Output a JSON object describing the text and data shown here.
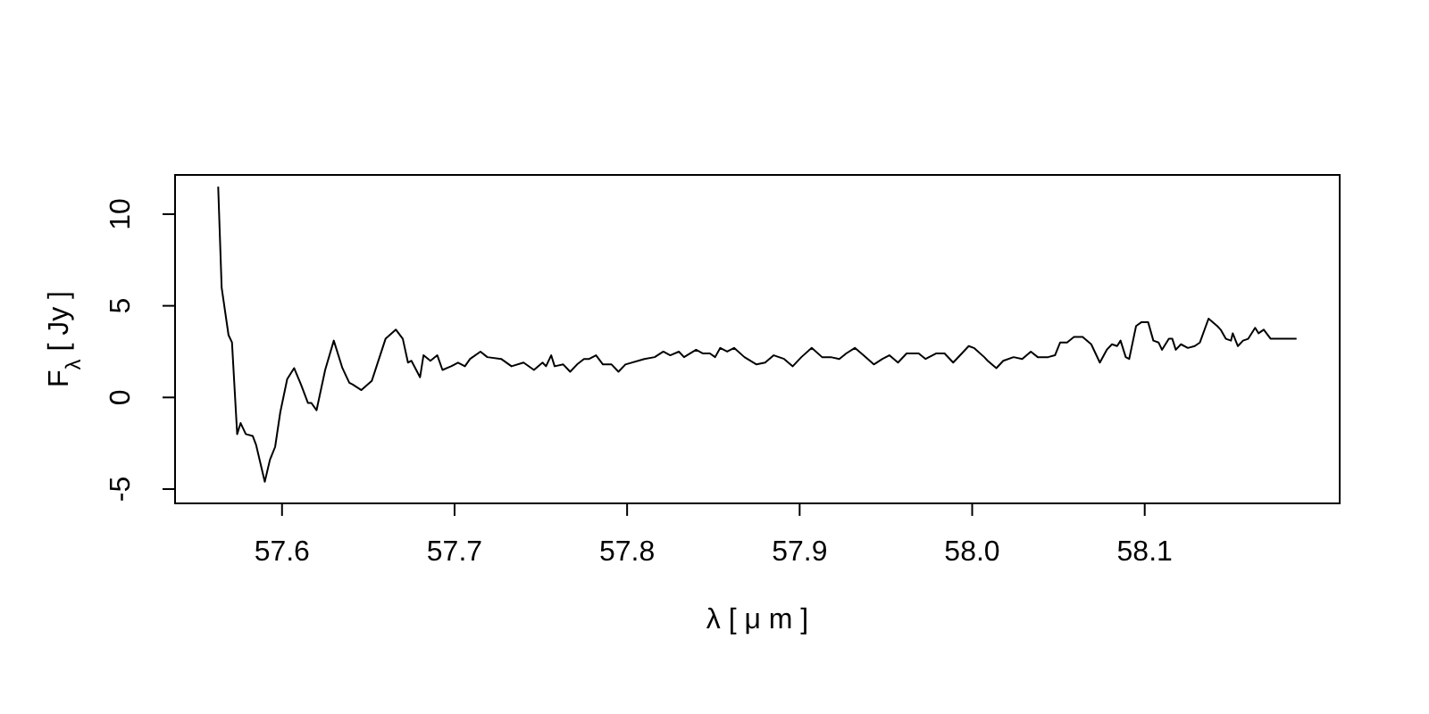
{
  "chart_data": {
    "type": "line",
    "xlabel": "λ [ μ m ]",
    "ylabel": "F$_{λ}$ [ Jy ]",
    "xlim": [
      57.538,
      58.213
    ],
    "ylim": [
      -5.78,
      12.14
    ],
    "xticks": [
      {
        "value": 57.6,
        "label": "57.6"
      },
      {
        "value": 57.7,
        "label": "57.7"
      },
      {
        "value": 57.8,
        "label": "57.8"
      },
      {
        "value": 57.9,
        "label": "57.9"
      },
      {
        "value": 58.0,
        "label": "58.0"
      },
      {
        "value": 58.1,
        "label": "58.1"
      }
    ],
    "yticks": [
      -5,
      0,
      5,
      10
    ],
    "grid": false,
    "marker": "none",
    "line_style": "solid",
    "series": [
      {
        "color": "#000000",
        "x": [
          57.563,
          57.565,
          57.569,
          57.571,
          57.574,
          57.576,
          57.579,
          57.583,
          57.585,
          57.59,
          57.593,
          57.596,
          57.599,
          57.603,
          57.607,
          57.611,
          57.615,
          57.617,
          57.62,
          57.625,
          57.63,
          57.635,
          57.639,
          57.641,
          57.646,
          57.652,
          57.66,
          57.666,
          57.67,
          57.673,
          57.675,
          57.68,
          57.682,
          57.686,
          57.69,
          57.693,
          57.698,
          57.702,
          57.706,
          57.709,
          57.715,
          57.719,
          57.727,
          57.733,
          57.74,
          57.746,
          57.751,
          57.753,
          57.756,
          57.758,
          57.763,
          57.767,
          57.771,
          57.775,
          57.778,
          57.782,
          57.786,
          57.791,
          57.795,
          57.799,
          57.81,
          57.816,
          57.821,
          57.825,
          57.83,
          57.833,
          57.84,
          57.844,
          57.848,
          57.851,
          57.854,
          57.858,
          57.862,
          57.868,
          57.875,
          57.88,
          57.885,
          57.891,
          57.896,
          57.901,
          57.907,
          57.913,
          57.918,
          57.923,
          57.927,
          57.932,
          57.937,
          57.943,
          57.948,
          57.952,
          57.957,
          57.962,
          57.969,
          57.973,
          57.979,
          57.984,
          57.989,
          57.998,
          58.001,
          58.007,
          58.009,
          58.014,
          58.018,
          58.024,
          58.029,
          58.034,
          58.038,
          58.044,
          58.048,
          58.051,
          58.055,
          58.059,
          58.064,
          58.069,
          58.074,
          58.078,
          58.081,
          58.084,
          58.086,
          58.089,
          58.091,
          58.095,
          58.098,
          58.102,
          58.105,
          58.108,
          58.11,
          58.114,
          58.116,
          58.118,
          58.121,
          58.125,
          58.129,
          58.132,
          58.137,
          58.142,
          58.144,
          58.147,
          58.15,
          58.151,
          58.154,
          58.157,
          58.16,
          58.164,
          58.166,
          58.169,
          58.173,
          58.188
        ],
        "values": [
          11.5,
          6.0,
          3.4,
          3.0,
          -2.0,
          -1.4,
          -2.0,
          -2.1,
          -2.6,
          -4.6,
          -3.4,
          -2.7,
          -0.8,
          1.0,
          1.6,
          0.7,
          -0.3,
          -0.3,
          -0.7,
          1.5,
          3.1,
          1.6,
          0.8,
          0.7,
          0.4,
          0.9,
          3.2,
          3.7,
          3.2,
          1.9,
          2.0,
          1.1,
          2.3,
          2.0,
          2.3,
          1.5,
          1.7,
          1.9,
          1.7,
          2.1,
          2.5,
          2.2,
          2.1,
          1.7,
          1.9,
          1.5,
          1.9,
          1.7,
          2.3,
          1.7,
          1.8,
          1.4,
          1.8,
          2.1,
          2.1,
          2.3,
          1.8,
          1.8,
          1.4,
          1.8,
          2.1,
          2.2,
          2.5,
          2.3,
          2.5,
          2.2,
          2.6,
          2.4,
          2.4,
          2.2,
          2.7,
          2.5,
          2.7,
          2.2,
          1.8,
          1.9,
          2.3,
          2.1,
          1.7,
          2.2,
          2.7,
          2.2,
          2.2,
          2.1,
          2.4,
          2.7,
          2.3,
          1.8,
          2.1,
          2.3,
          1.9,
          2.4,
          2.4,
          2.1,
          2.4,
          2.4,
          1.9,
          2.8,
          2.7,
          2.2,
          2.0,
          1.6,
          2.0,
          2.2,
          2.1,
          2.5,
          2.2,
          2.2,
          2.3,
          3.0,
          3.0,
          3.3,
          3.3,
          2.9,
          1.9,
          2.6,
          2.9,
          2.8,
          3.1,
          2.2,
          2.1,
          3.9,
          4.1,
          4.1,
          3.1,
          3.0,
          2.6,
          3.2,
          3.2,
          2.6,
          2.9,
          2.7,
          2.8,
          3.0,
          4.3,
          3.9,
          3.7,
          3.2,
          3.1,
          3.5,
          2.8,
          3.1,
          3.2,
          3.8,
          3.5,
          3.7,
          3.2,
          3.2
        ]
      }
    ]
  }
}
